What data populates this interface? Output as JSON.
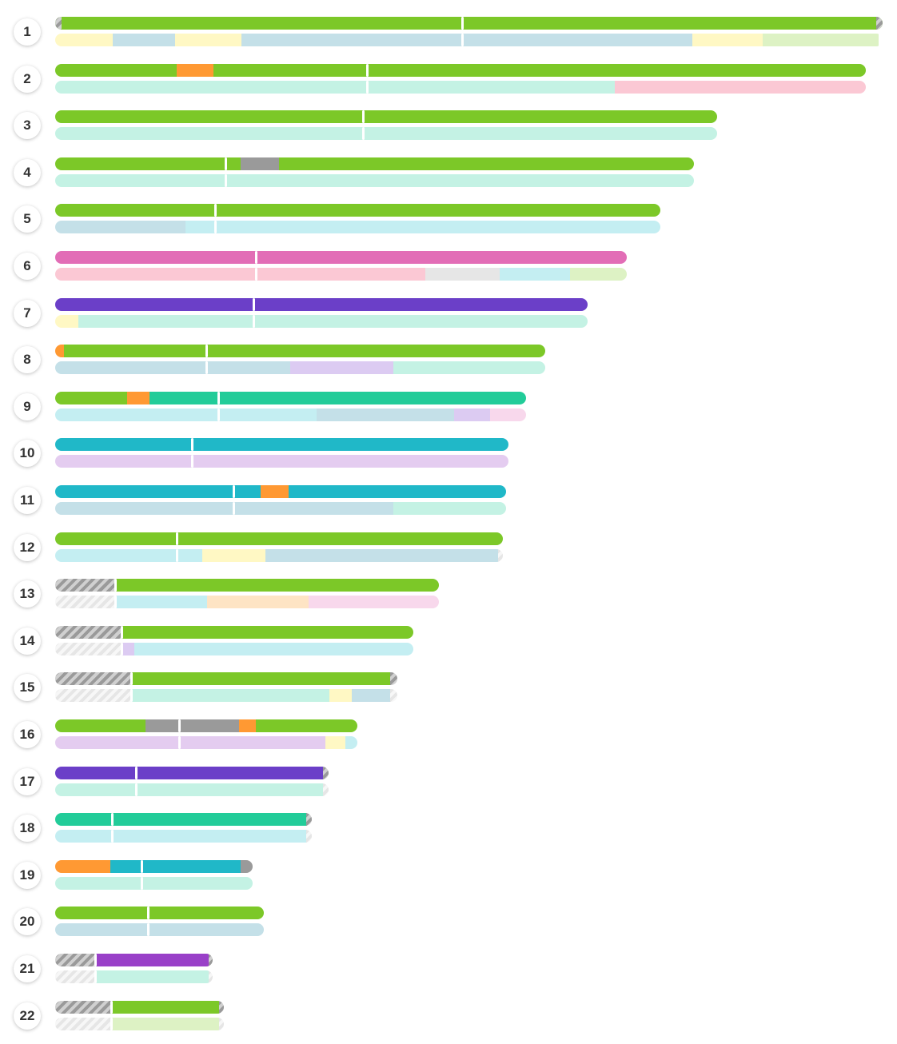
{
  "colors": {
    "green": "#7cc828",
    "orange": "#ff9933",
    "grey": "#9a9a9a",
    "pink": "#e26db6",
    "purple": "#6b3fc8",
    "violet": "#9940c8",
    "teal": "#22cc99",
    "cyan": "#20b8c8",
    "lt_yellow": "#fff8c4",
    "lt_blue": "#c4e0e8",
    "lt_cyan": "#c4eef2",
    "lt_mint": "#c4f2e4",
    "lt_pink": "#fbc8d4",
    "lt_grey": "#e6e6e6",
    "lt_green": "#ddf2c4",
    "lt_lavender": "#dccbf2",
    "lt_pinkish": "#f8d8ec",
    "lt_purple": "#e4ccf0",
    "lt_peach": "#fee4c4"
  },
  "rows": [
    {
      "label": "1",
      "length": 1.0,
      "centromere": 0.4925,
      "top": [
        [
          0,
          1,
          "green"
        ]
      ],
      "bottom": [
        [
          0,
          0.07,
          "lt_yellow"
        ],
        [
          0,
          0,
          "hatch-light"
        ],
        [
          0.07,
          0.145,
          "lt_blue"
        ],
        [
          0.145,
          0.225,
          "lt_yellow"
        ],
        [
          0.225,
          0.77,
          "lt_blue"
        ],
        [
          0.77,
          0.855,
          "lt_yellow"
        ],
        [
          0.855,
          0.995,
          "lt_green"
        ]
      ],
      "top_caps": [
        0.008,
        0.992
      ],
      "hatch_ends": true
    },
    {
      "label": "2",
      "length": 0.98,
      "centromere": 0.385,
      "top": [
        [
          0,
          0.15,
          "green"
        ],
        [
          0.15,
          0.195,
          "orange"
        ],
        [
          0.195,
          1,
          "green"
        ]
      ],
      "bottom": [
        [
          0,
          0.69,
          "lt_mint"
        ],
        [
          0.69,
          1,
          "lt_pink"
        ]
      ]
    },
    {
      "label": "3",
      "length": 0.8,
      "centromere": 0.465,
      "top": [
        [
          0,
          1,
          "green"
        ]
      ],
      "bottom": [
        [
          0,
          1,
          "lt_mint"
        ]
      ]
    },
    {
      "label": "4",
      "length": 0.772,
      "centromere": 0.267,
      "top": [
        [
          0,
          0.29,
          "green"
        ],
        [
          0.29,
          0.35,
          "grey"
        ],
        [
          0.35,
          1,
          "green"
        ]
      ],
      "bottom": [
        [
          0,
          1,
          "lt_mint"
        ]
      ]
    },
    {
      "label": "5",
      "length": 0.731,
      "centromere": 0.265,
      "top": [
        [
          0,
          1,
          "green"
        ]
      ],
      "bottom": [
        [
          0,
          0.215,
          "lt_blue"
        ],
        [
          0.215,
          1,
          "lt_cyan"
        ]
      ]
    },
    {
      "label": "6",
      "length": 0.691,
      "centromere": 0.352,
      "top": [
        [
          0,
          1,
          "pink"
        ]
      ],
      "bottom": [
        [
          0,
          0.648,
          "lt_pink"
        ],
        [
          0.648,
          0.777,
          "lt_grey"
        ],
        [
          0.777,
          0.9,
          "lt_cyan"
        ],
        [
          0.9,
          1,
          "lt_green"
        ]
      ]
    },
    {
      "label": "7",
      "length": 0.643,
      "centromere": 0.374,
      "top": [
        [
          0,
          1,
          "purple"
        ]
      ],
      "bottom": [
        [
          0,
          0.044,
          "lt_yellow"
        ],
        [
          0.044,
          1,
          "lt_mint"
        ]
      ]
    },
    {
      "label": "8",
      "length": 0.592,
      "centromere": 0.31,
      "top": [
        [
          0,
          0.018,
          "orange"
        ],
        [
          0.018,
          1,
          "green"
        ]
      ],
      "bottom": [
        [
          0,
          0.48,
          "lt_blue"
        ],
        [
          0.48,
          0.69,
          "lt_lavender"
        ],
        [
          0.69,
          1,
          "lt_mint"
        ]
      ]
    },
    {
      "label": "9",
      "length": 0.569,
      "centromere": 0.347,
      "top": [
        [
          0,
          0.152,
          "green"
        ],
        [
          0.152,
          0.2,
          "orange"
        ],
        [
          0.2,
          1,
          "teal"
        ]
      ],
      "bottom": [
        [
          0,
          0.556,
          "lt_cyan"
        ],
        [
          0.556,
          0.848,
          "lt_blue"
        ],
        [
          0.848,
          0.924,
          "lt_lavender"
        ],
        [
          0.924,
          1,
          "lt_pinkish"
        ]
      ],
      "hatch_end_right": true
    },
    {
      "label": "10",
      "length": 0.548,
      "centromere": 0.302,
      "top": [
        [
          0,
          1,
          "cyan"
        ]
      ],
      "bottom": [
        [
          0,
          1,
          "lt_purple"
        ]
      ]
    },
    {
      "label": "11",
      "length": 0.545,
      "centromere": 0.396,
      "top": [
        [
          0,
          0.455,
          "cyan"
        ],
        [
          0.455,
          0.518,
          "orange"
        ],
        [
          0.518,
          1,
          "cyan"
        ]
      ],
      "bottom": [
        [
          0,
          0.75,
          "lt_blue"
        ],
        [
          0.75,
          1,
          "lt_mint"
        ]
      ]
    },
    {
      "label": "12",
      "length": 0.541,
      "centromere": 0.272,
      "top": [
        [
          0,
          1,
          "green"
        ]
      ],
      "bottom": [
        [
          0,
          0.328,
          "lt_cyan"
        ],
        [
          0.328,
          0.47,
          "lt_yellow"
        ],
        [
          0.47,
          0.99,
          "lt_blue"
        ]
      ],
      "hatch_end_right": true
    },
    {
      "label": "13",
      "length": 0.464,
      "centromere": 0.157,
      "top": [
        [
          0,
          0.157,
          "hatch-dark"
        ],
        [
          0.157,
          1,
          "green"
        ]
      ],
      "bottom": [
        [
          0,
          0.157,
          "hatch-light"
        ],
        [
          0.157,
          0.395,
          "lt_cyan"
        ],
        [
          0.395,
          0.66,
          "lt_peach"
        ],
        [
          0.66,
          1,
          "lt_pinkish"
        ]
      ],
      "hatch_end_right": true
    },
    {
      "label": "14",
      "length": 0.433,
      "centromere": 0.187,
      "top": [
        [
          0,
          0.187,
          "hatch-dark"
        ],
        [
          0.187,
          1,
          "green"
        ]
      ],
      "bottom": [
        [
          0,
          0.187,
          "hatch-light"
        ],
        [
          0.187,
          0.22,
          "lt_lavender"
        ],
        [
          0.22,
          1,
          "lt_cyan"
        ]
      ],
      "hatch_end_right": true
    },
    {
      "label": "15",
      "length": 0.414,
      "centromere": 0.222,
      "top": [
        [
          0,
          0.222,
          "hatch-dark"
        ],
        [
          0.222,
          0.977,
          "green"
        ]
      ],
      "bottom": [
        [
          0,
          0.222,
          "hatch-light"
        ],
        [
          0.222,
          0.8,
          "lt_mint"
        ],
        [
          0.8,
          0.866,
          "lt_yellow"
        ],
        [
          0.866,
          0.977,
          "lt_blue"
        ]
      ],
      "hatch_end_right": true
    },
    {
      "label": "16",
      "length": 0.365,
      "centromere": 0.412,
      "top": [
        [
          0,
          0.298,
          "green"
        ],
        [
          0.298,
          0.61,
          "grey"
        ],
        [
          0.61,
          0.665,
          "orange"
        ],
        [
          0.665,
          1,
          "green"
        ]
      ],
      "bottom": [
        [
          0,
          0.895,
          "lt_purple"
        ],
        [
          0.895,
          0.961,
          "lt_yellow"
        ],
        [
          0.961,
          1,
          "lt_cyan"
        ]
      ],
      "hatch_end_right": true
    },
    {
      "label": "17",
      "length": 0.33,
      "centromere": 0.298,
      "top": [
        [
          0,
          0.98,
          "purple"
        ]
      ],
      "bottom": [
        [
          0,
          0.98,
          "lt_mint"
        ]
      ],
      "hatch_end_right": true
    },
    {
      "label": "18",
      "length": 0.31,
      "centromere": 0.222,
      "top": [
        [
          0,
          0.98,
          "teal"
        ]
      ],
      "bottom": [
        [
          0,
          0.98,
          "lt_cyan"
        ]
      ],
      "hatch_end_right": true
    },
    {
      "label": "19",
      "length": 0.239,
      "centromere": 0.44,
      "top": [
        [
          0,
          0.278,
          "orange"
        ],
        [
          0.278,
          0.936,
          "cyan"
        ],
        [
          0.936,
          1,
          "grey"
        ]
      ],
      "bottom": [
        [
          0,
          1,
          "lt_mint"
        ]
      ]
    },
    {
      "label": "20",
      "length": 0.252,
      "centromere": 0.448,
      "top": [
        [
          0,
          1,
          "green"
        ]
      ],
      "bottom": [
        [
          0,
          1,
          "lt_blue"
        ]
      ]
    },
    {
      "label": "21",
      "length": 0.19,
      "centromere": 0.256,
      "top": [
        [
          0,
          0.256,
          "hatch-dark"
        ],
        [
          0.256,
          0.975,
          "violet"
        ]
      ],
      "bottom": [
        [
          0,
          0.256,
          "hatch-light"
        ],
        [
          0.256,
          0.975,
          "lt_mint"
        ]
      ],
      "hatch_end_right": true
    },
    {
      "label": "22",
      "length": 0.204,
      "centromere": 0.333,
      "top": [
        [
          0,
          0.333,
          "hatch-dark"
        ],
        [
          0.333,
          0.97,
          "green"
        ]
      ],
      "bottom": [
        [
          0,
          0.333,
          "hatch-light"
        ],
        [
          0.333,
          0.97,
          "lt_green"
        ]
      ],
      "hatch_end_right": true
    }
  ]
}
